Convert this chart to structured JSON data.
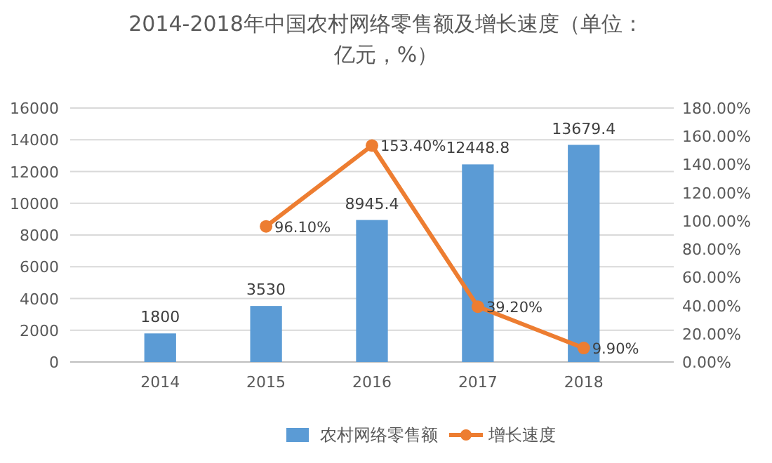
{
  "chart_data": {
    "type": "bar",
    "title": "2014-2018年中国农村网络零售额及增长速度（单位：亿元，%）",
    "categories": [
      "2014",
      "2015",
      "2016",
      "2017",
      "2018"
    ],
    "series": [
      {
        "name": "农村网络零售额",
        "color": "#5b9bd5",
        "values": [
          1800,
          3530,
          8945.4,
          12448.8,
          13679.4
        ],
        "value_labels": [
          "1800",
          "3530",
          "8945.4",
          "12448.8",
          "13679.4"
        ]
      },
      {
        "name": "增长速度",
        "type": "line",
        "axis": "y2",
        "color": "#ed7d31",
        "marker": "circle",
        "values": [
          null,
          96.1,
          153.4,
          39.2,
          9.9
        ],
        "value_labels": [
          null,
          "96.10%",
          "153.40%",
          "39.20%",
          "9.90%"
        ]
      }
    ],
    "ylim": [
      0,
      16000
    ],
    "yticks": [
      0,
      2000,
      4000,
      6000,
      8000,
      10000,
      12000,
      14000,
      16000
    ],
    "y2lim": [
      0,
      180
    ],
    "y2ticks": [
      {
        "value": 0,
        "label": "0.00%"
      },
      {
        "value": 20,
        "label": "20.00%"
      },
      {
        "value": 40,
        "label": "40.00%"
      },
      {
        "value": 60,
        "label": "60.00%"
      },
      {
        "value": 80,
        "label": "80.00%"
      },
      {
        "value": 100,
        "label": "100.00%"
      },
      {
        "value": 120,
        "label": "120.00%"
      },
      {
        "value": 140,
        "label": "140.00%"
      },
      {
        "value": 160,
        "label": "160.00%"
      },
      {
        "value": 180,
        "label": "180.00%"
      }
    ],
    "grid": "y",
    "legend": "bottom"
  }
}
